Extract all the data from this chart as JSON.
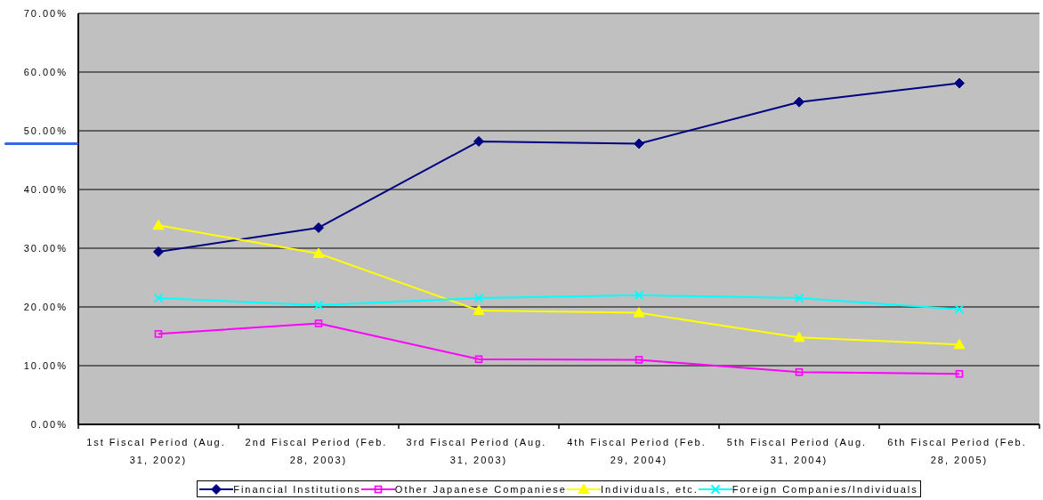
{
  "chart_data": {
    "type": "line",
    "categories": [
      "1st Fiscal Period (Aug. 31, 2002)",
      "2nd Fiscal Period (Feb. 28, 2003)",
      "3rd Fiscal Period (Aug. 31, 2003)",
      "4th Fiscal Period (Feb. 29, 2004)",
      "5th Fiscal Period (Aug. 31, 2004)",
      "6th Fiscal Period (Feb. 28, 2005)"
    ],
    "series": [
      {
        "name": "Financial Institutions",
        "color": "#000080",
        "marker": "diamond",
        "values": [
          29.4,
          33.5,
          48.2,
          47.8,
          54.9,
          58.1
        ]
      },
      {
        "name": "Other Japanese Companiese",
        "color": "#ff00ff",
        "marker": "square",
        "values": [
          15.4,
          17.2,
          11.1,
          11.0,
          8.9,
          8.6
        ]
      },
      {
        "name": "Individuals, etc.",
        "color": "#ffff00",
        "marker": "triangle",
        "values": [
          33.9,
          29.1,
          19.4,
          19.0,
          14.8,
          13.6
        ]
      },
      {
        "name": "Foreign Companies/Individuals",
        "color": "#00ffff",
        "marker": "cross",
        "values": [
          21.5,
          20.3,
          21.5,
          22.0,
          21.5,
          19.6
        ]
      }
    ],
    "ylim": [
      0,
      70
    ],
    "yticks": [
      {
        "value": 0,
        "label": "0.00%"
      },
      {
        "value": 10,
        "label": "10.00%"
      },
      {
        "value": 20,
        "label": "20.00%"
      },
      {
        "value": 30,
        "label": "30.00%"
      },
      {
        "value": 40,
        "label": "40.00%"
      },
      {
        "value": 50,
        "label": "50.00%"
      },
      {
        "value": 60,
        "label": "60.00%"
      },
      {
        "value": 70,
        "label": "70.00%"
      }
    ],
    "grid": "y",
    "legend": "bottom"
  }
}
